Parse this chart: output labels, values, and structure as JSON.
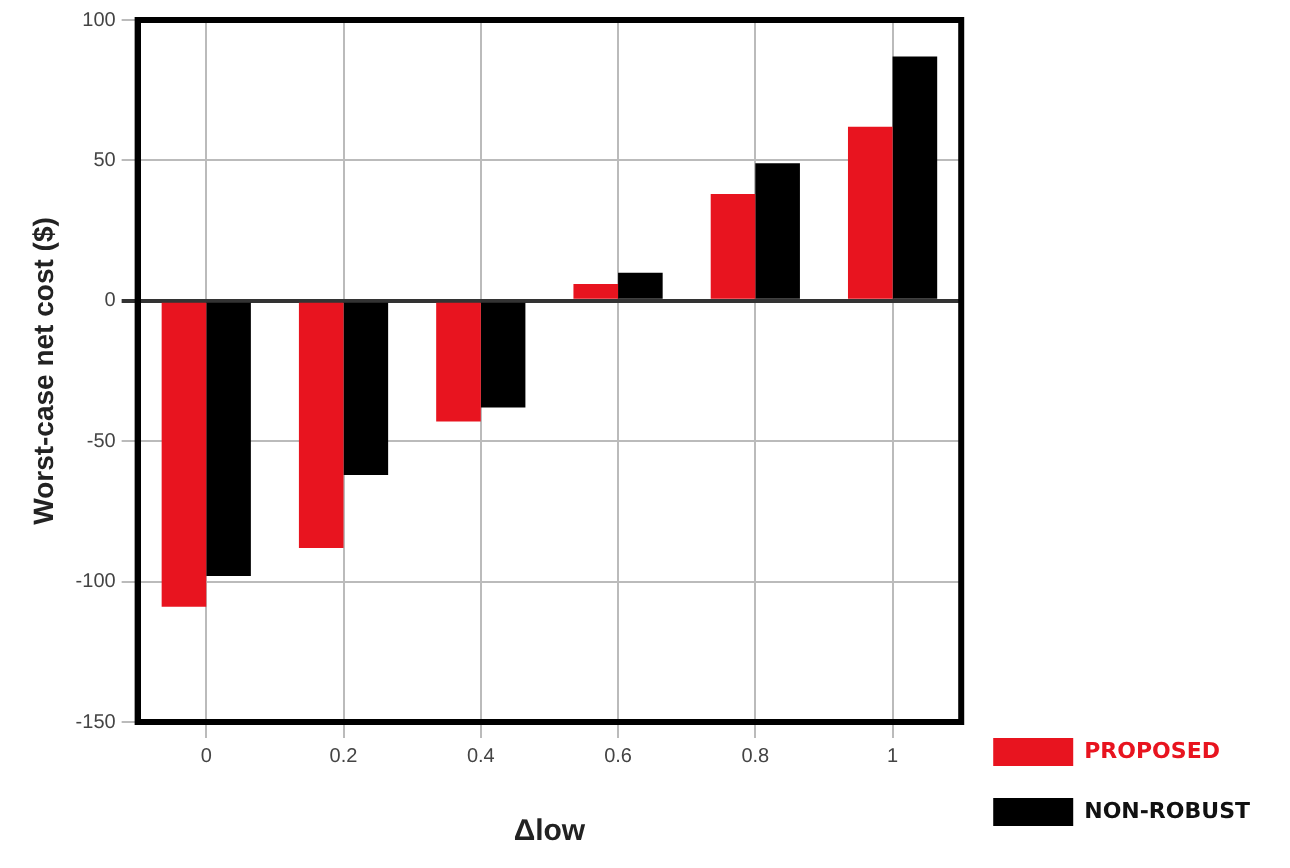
{
  "chart_data": {
    "type": "bar",
    "xlabel": "Δlow",
    "ylabel": "Worst-case net cost ($)",
    "categories": [
      "0",
      "0.2",
      "0.4",
      "0.6",
      "0.8",
      "1"
    ],
    "series": [
      {
        "name": "PROPOSED",
        "color": "#e8141f",
        "values": [
          -109,
          -88,
          -43,
          6,
          38,
          62
        ]
      },
      {
        "name": "NON-ROBUST",
        "color": "#000000",
        "values": [
          -98,
          -62,
          -38,
          10,
          49,
          87
        ]
      }
    ],
    "ylim": [
      -150,
      100
    ],
    "yticks": [
      -150,
      -100,
      -50,
      0,
      50,
      100
    ],
    "grid": true,
    "legend": "bottom right"
  }
}
